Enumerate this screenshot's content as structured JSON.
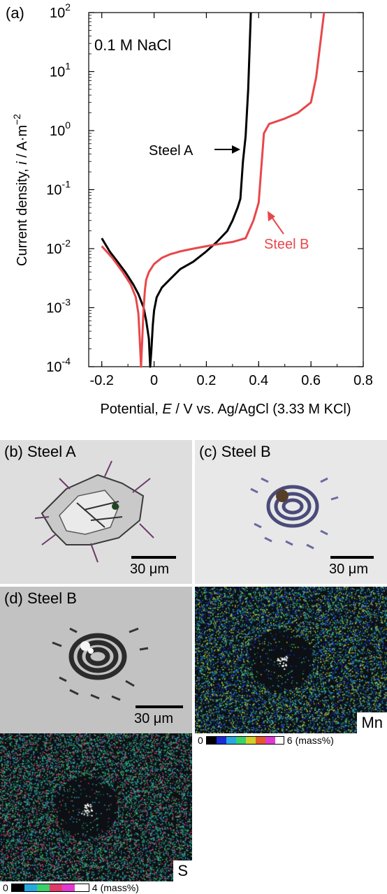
{
  "chart_data": {
    "type": "line",
    "panel_label": "(a)",
    "annotation": "0.1 M NaCl",
    "xlabel_prefix": "Potential, ",
    "xlabel_var": "E",
    "xlabel_suffix": " / V vs. Ag/AgCl (3.33 M KCl)",
    "ylabel_prefix": "Current density, ",
    "ylabel_var": "i",
    "ylabel_suffix": " / A·m",
    "ylabel_exp": "−2",
    "xlim": [
      -0.25,
      0.8
    ],
    "ylim_log10": [
      -4,
      2
    ],
    "log_y": true,
    "x_ticks": [
      "-0.2",
      "0",
      "0.2",
      "0.4",
      "0.6",
      "0.8"
    ],
    "x_tick_values": [
      -0.2,
      0,
      0.2,
      0.4,
      0.6,
      0.8
    ],
    "y_ticks": [
      {
        "base": "10",
        "exp": "2",
        "value": 2
      },
      {
        "base": "10",
        "exp": "1",
        "value": 1
      },
      {
        "base": "10",
        "exp": "0",
        "value": 0
      },
      {
        "base": "10",
        "exp": "-1",
        "value": -1
      },
      {
        "base": "10",
        "exp": "-2",
        "value": -2
      },
      {
        "base": "10",
        "exp": "-3",
        "value": -3
      },
      {
        "base": "10",
        "exp": "-4",
        "value": -4
      }
    ],
    "series": [
      {
        "name": "Steel A",
        "color": "#000000",
        "x": [
          -0.2,
          -0.17,
          -0.14,
          -0.11,
          -0.08,
          -0.06,
          -0.04,
          -0.03,
          -0.02,
          -0.015,
          -0.01,
          -0.005,
          0.0,
          0.01,
          0.03,
          0.06,
          0.1,
          0.15,
          0.2,
          0.24,
          0.28,
          0.3,
          0.32,
          0.33,
          0.34,
          0.35,
          0.36,
          0.37
        ],
        "y": [
          0.015,
          0.009,
          0.006,
          0.004,
          0.0025,
          0.0017,
          0.001,
          0.0006,
          0.0003,
          0.0001,
          0.0002,
          0.0005,
          0.0009,
          0.0015,
          0.0022,
          0.003,
          0.0045,
          0.006,
          0.009,
          0.013,
          0.02,
          0.03,
          0.05,
          0.07,
          0.3,
          0.8,
          5,
          100
        ]
      },
      {
        "name": "Steel B",
        "color": "#e8474b",
        "x": [
          -0.2,
          -0.16,
          -0.12,
          -0.09,
          -0.07,
          -0.06,
          -0.055,
          -0.05,
          -0.045,
          -0.04,
          -0.035,
          -0.03,
          -0.02,
          0.0,
          0.03,
          0.06,
          0.1,
          0.15,
          0.2,
          0.25,
          0.3,
          0.35,
          0.38,
          0.4,
          0.42,
          0.44,
          0.5,
          0.55,
          0.6,
          0.62,
          0.65
        ],
        "y": [
          0.011,
          0.007,
          0.004,
          0.0025,
          0.0015,
          0.0008,
          0.0003,
          0.0001,
          0.0003,
          0.001,
          0.002,
          0.003,
          0.004,
          0.0055,
          0.007,
          0.008,
          0.009,
          0.01,
          0.011,
          0.012,
          0.013,
          0.015,
          0.03,
          0.06,
          0.9,
          1.3,
          1.6,
          2.0,
          3.0,
          8.0,
          100
        ]
      }
    ],
    "legend": "inline labels with arrows",
    "grid": false
  },
  "panels": {
    "b": {
      "label": "(b) Steel A",
      "scale": "30 μm"
    },
    "c": {
      "label": "(c) Steel B",
      "scale": "30 μm"
    },
    "d": {
      "label": "(d) Steel B",
      "scale": "30 μm"
    },
    "mn": {
      "label": "Mn",
      "cbar_min": "0",
      "cbar_max": "6",
      "cbar_unit": "(mass%)"
    },
    "s": {
      "label": "S",
      "cbar_min": "0",
      "cbar_max": "4",
      "cbar_unit": "(mass%)"
    }
  }
}
